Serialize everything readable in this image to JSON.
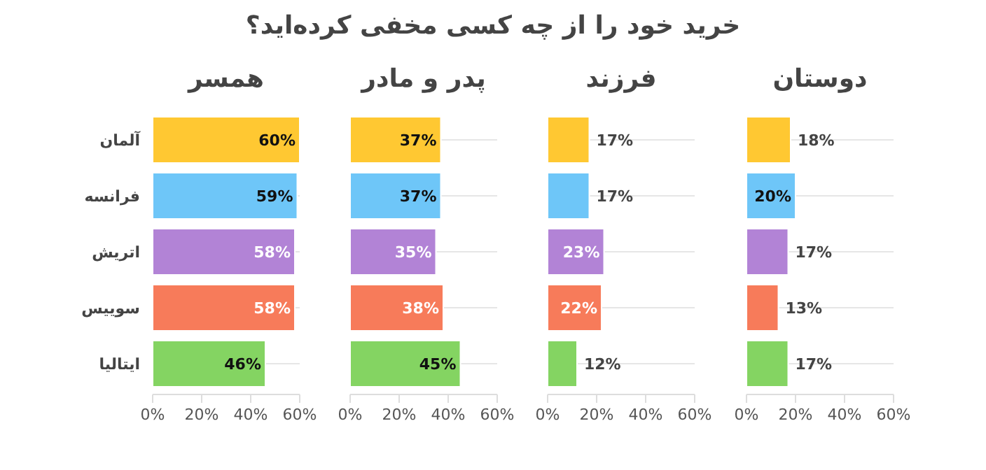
{
  "chart_data": [
    {
      "type": "bar",
      "orientation": "horizontal",
      "title": "همسر",
      "annotations": [
        "خرید خود را از چه کسی مخفی کرده‌اید؟"
      ],
      "categories": [
        "آلمان",
        "فرانسه",
        "اتریش",
        "سوییس",
        "ایتالیا"
      ],
      "values": [
        60,
        59,
        58,
        58,
        46
      ],
      "value_labels": [
        "60%",
        "59%",
        "58%",
        "58%",
        "46%"
      ],
      "colors": [
        "#ffc832",
        "#6ec6f8",
        "#b283d6",
        "#f77b5a",
        "#84d462"
      ],
      "xlim": [
        0,
        60
      ],
      "xticks": [
        {
          "value": 0,
          "label": "0%"
        },
        {
          "value": 20,
          "label": "20%"
        },
        {
          "value": 40,
          "label": "40%"
        },
        {
          "value": 60,
          "label": "60%"
        }
      ],
      "grid": "y"
    },
    {
      "type": "bar",
      "orientation": "horizontal",
      "title": "پدر و مادر",
      "categories": [
        null,
        null,
        null,
        null,
        null
      ],
      "values": [
        37,
        37,
        35,
        38,
        45
      ],
      "value_labels": [
        "37%",
        "37%",
        "35%",
        "38%",
        "45%"
      ],
      "colors": [
        "#ffc832",
        "#6ec6f8",
        "#b283d6",
        "#f77b5a",
        "#84d462"
      ],
      "xlim": [
        0,
        60
      ],
      "xticks": [
        {
          "value": 0,
          "label": "0%"
        },
        {
          "value": 20,
          "label": "20%"
        },
        {
          "value": 40,
          "label": "40%"
        },
        {
          "value": 60,
          "label": "60%"
        }
      ],
      "grid": "y",
      "tick_labels": "x"
    },
    {
      "type": "bar",
      "orientation": "horizontal",
      "title": "فرزند",
      "categories": [
        null,
        null,
        null,
        null,
        null
      ],
      "values": [
        17,
        17,
        23,
        22,
        12
      ],
      "value_labels": [
        "17%",
        "17%",
        "23%",
        "22%",
        "12%"
      ],
      "colors": [
        "#ffc832",
        "#6ec6f8",
        "#b283d6",
        "#f77b5a",
        "#84d462"
      ],
      "xlim": [
        0,
        60
      ],
      "xticks": [
        {
          "value": 0,
          "label": "0%"
        },
        {
          "value": 20,
          "label": "20%"
        },
        {
          "value": 40,
          "label": "40%"
        },
        {
          "value": 60,
          "label": "60%"
        }
      ],
      "grid": "y",
      "tick_labels": "x"
    },
    {
      "type": "bar",
      "orientation": "horizontal",
      "title": "دوستان",
      "categories": [
        null,
        null,
        null,
        null,
        null
      ],
      "values": [
        18,
        20,
        17,
        13,
        17
      ],
      "value_labels": [
        "18%",
        "20%",
        "17%",
        "13%",
        "17%"
      ],
      "colors": [
        "#ffc832",
        "#6ec6f8",
        "#b283d6",
        "#f77b5a",
        "#84d462"
      ],
      "xlim": [
        0,
        60
      ],
      "xticks": [
        {
          "value": 0,
          "label": "0%"
        },
        {
          "value": 20,
          "label": "20%"
        },
        {
          "value": 40,
          "label": "40%"
        },
        {
          "value": 60,
          "label": "60%"
        }
      ],
      "grid": "y",
      "tick_labels": "x"
    }
  ]
}
